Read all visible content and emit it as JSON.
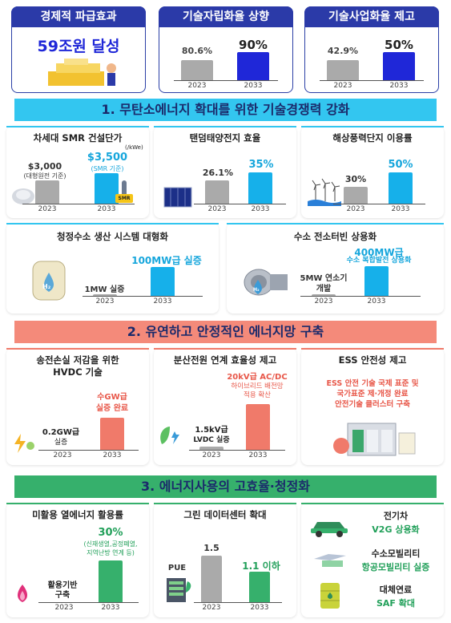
{
  "top": {
    "econ": {
      "title": "경제적 파급효과",
      "value": "59조원 달성"
    },
    "tech": {
      "title": "기술자립화율 상향",
      "v1": "80.6%",
      "v2": "90%",
      "y1": "2023",
      "y2": "2033"
    },
    "biz": {
      "title": "기술사업화율 제고",
      "v1": "42.9%",
      "v2": "50%",
      "y1": "2023",
      "y2": "2033"
    }
  },
  "section1": {
    "title": "1. 무탄소에너지 확대를 위한 기술경쟁력 강화",
    "smr": {
      "title": "차세대 SMR 건설단가",
      "unit": "(/kWe)",
      "v1": "$3,000",
      "v1_note": "(대형원전 기준)",
      "v2": "$3,500",
      "v2_note": "(SMR 기준)",
      "badge": "SMR",
      "y1": "2023",
      "y2": "2033"
    },
    "solar": {
      "title": "탠덤태양전지 효율",
      "v1": "26.1%",
      "v2": "35%",
      "y1": "2023",
      "y2": "2033"
    },
    "wind": {
      "title": "해상풍력단지 이용률",
      "v1": "30%",
      "v2": "50%",
      "y1": "2023",
      "y2": "2033"
    },
    "h2": {
      "title": "청정수소 생산 시스템 대형화",
      "v1": "1MW 실증",
      "v2": "100MW급 실증",
      "icon_text": "H₂",
      "y1": "2023",
      "y2": "2033"
    },
    "turbine": {
      "title": "수소 전소터빈 상용화",
      "v1": "5MW 연소기 개발",
      "v2_line1": "400MW급",
      "v2_line2": "수소 복합발전 상용화",
      "icon_text": "H₂",
      "y1": "2023",
      "y2": "2033"
    }
  },
  "section2": {
    "title": "2. 유연하고 안정적인 에너지망 구축",
    "hvdc": {
      "title_line1": "송전손실 저감을 위한",
      "title_line2": "HVDC 기술",
      "v1_line1": "0.2GW급",
      "v1_line2": "실증",
      "v2_line1": "수GW급",
      "v2_line2": "실증 완료",
      "y1": "2023",
      "y2": "2033"
    },
    "dist": {
      "title": "분산전원 연계 효율성 제고",
      "v1_line1": "1.5kV급",
      "v1_line2": "LVDC 실증",
      "v2_line1": "20kV급 AC/DC",
      "v2_line2": "하이브리드 배전망",
      "v2_line3": "적용 확산",
      "y1": "2023",
      "y2": "2033"
    },
    "ess": {
      "title": "ESS 안전성 제고",
      "line1": "ESS 안전 기술 국제 표준 및",
      "line2": "국가표준 제·개정 완료",
      "line3": "안전기술 클러스터 구축"
    }
  },
  "section3": {
    "title": "3. 에너지사용의 고효율·청정화",
    "heat": {
      "title": "미활용 열에너지 활용률",
      "v1_line1": "활용기반",
      "v1_line2": "구축",
      "v2": "30%",
      "v2_note1": "(신재생열,공정폐열,",
      "v2_note2": "지역난방 연계 등)",
      "y1": "2023",
      "y2": "2033"
    },
    "dc": {
      "title": "그린 데이터센터 확대",
      "label": "PUE",
      "v1": "1.5",
      "v2": "1.1 이하",
      "y1": "2023",
      "y2": "2033"
    },
    "ev": {
      "title": "전기차",
      "desc": "V2G 상용화"
    },
    "hm": {
      "title": "수소모빌리티",
      "desc": "항공모빌리티 실증"
    },
    "saf": {
      "title": "대체연료",
      "desc": "SAF 확대"
    }
  }
}
